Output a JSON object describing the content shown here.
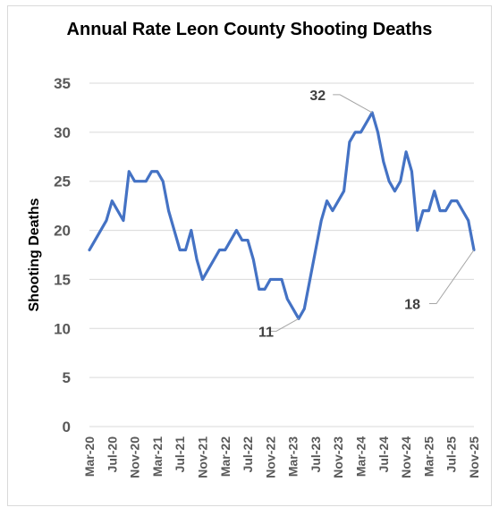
{
  "chart_data": {
    "type": "line",
    "title": "Annual Rate Leon County Shooting Deaths",
    "ylabel": "Shooting Deaths",
    "xlabel": "",
    "ylim": [
      0,
      35
    ],
    "y_ticks": [
      0,
      5,
      10,
      15,
      20,
      25,
      30,
      35
    ],
    "grid": true,
    "legend": "none",
    "x_tick_labels": [
      "Mar-20",
      "Jul-20",
      "Nov-20",
      "Mar-21",
      "Jul-21",
      "Nov-21",
      "Mar-22",
      "Jul-22",
      "Nov-22",
      "Mar-23",
      "Jul-23",
      "Nov-23",
      "Mar-24",
      "Jul-24",
      "Nov-24",
      "Mar-25",
      "Jul-25",
      "Nov-25"
    ],
    "x": [
      "Mar-20",
      "Apr-20",
      "May-20",
      "Jun-20",
      "Jul-20",
      "Aug-20",
      "Sep-20",
      "Oct-20",
      "Nov-20",
      "Dec-20",
      "Jan-21",
      "Feb-21",
      "Mar-21",
      "Apr-21",
      "May-21",
      "Jun-21",
      "Jul-21",
      "Aug-21",
      "Sep-21",
      "Oct-21",
      "Nov-21",
      "Dec-21",
      "Jan-22",
      "Feb-22",
      "Mar-22",
      "Apr-22",
      "May-22",
      "Jun-22",
      "Jul-22",
      "Aug-22",
      "Sep-22",
      "Oct-22",
      "Nov-22",
      "Dec-22",
      "Jan-23",
      "Feb-23",
      "Mar-23",
      "Apr-23",
      "May-23",
      "Jun-23",
      "Jul-23",
      "Aug-23",
      "Sep-23",
      "Oct-23",
      "Nov-23",
      "Dec-23",
      "Jan-24",
      "Feb-24",
      "Mar-24",
      "Apr-24",
      "May-24",
      "Jun-24",
      "Jul-24",
      "Aug-24",
      "Sep-24",
      "Oct-24",
      "Nov-24",
      "Dec-24",
      "Jan-25",
      "Feb-25",
      "Mar-25",
      "Apr-25",
      "May-25",
      "Jun-25",
      "Jul-25",
      "Aug-25",
      "Sep-25",
      "Oct-25",
      "Nov-25"
    ],
    "series": [
      {
        "color": "#4472c4",
        "values": [
          18,
          19,
          20,
          21,
          23,
          22,
          21,
          26,
          25,
          25,
          25,
          26,
          26,
          25,
          22,
          20,
          18,
          18,
          20,
          17,
          15,
          16,
          17,
          18,
          18,
          19,
          20,
          19,
          19,
          17,
          14,
          14,
          15,
          15,
          15,
          13,
          12,
          11,
          12,
          15,
          18,
          21,
          23,
          22,
          23,
          24,
          29,
          30,
          30,
          31,
          32,
          30,
          27,
          25,
          24,
          25,
          28,
          26,
          20,
          22,
          22,
          24,
          22,
          22,
          23,
          23,
          22,
          21,
          18
        ]
      }
    ],
    "annotations": [
      {
        "text": "32",
        "x": "May-24",
        "y": 32
      },
      {
        "text": "11",
        "x": "Apr-23",
        "y": 11
      },
      {
        "text": "18",
        "x": "Nov-25",
        "y": 18
      }
    ]
  }
}
